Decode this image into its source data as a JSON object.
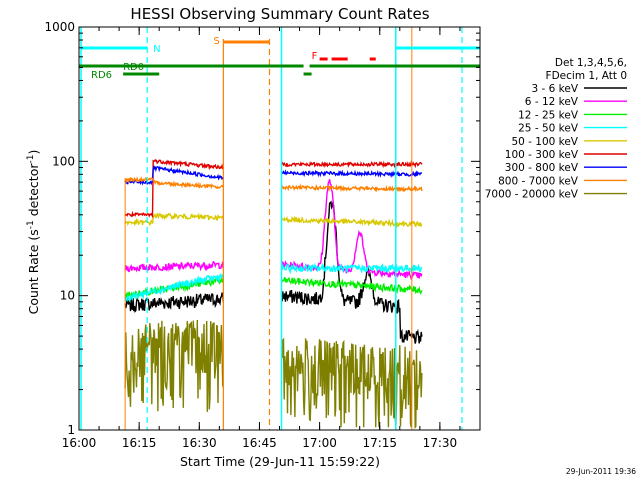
{
  "chart_data": {
    "type": "line",
    "title": "HESSI Observing Summary Count Rates",
    "xlabel": "Start Time (29-Jun-11 15:59:22)",
    "ylabel_main": "Count Rate (s",
    "ylabel_sup": "-1",
    "ylabel_mid": " detector",
    "ylabel_sup2": "-1",
    "ylabel_end": ")",
    "yscale": "log",
    "xlim_min": [
      0,
      100
    ],
    "ylim": [
      1,
      1000
    ],
    "x_ticks": [
      {
        "min": 0,
        "label": "16:00"
      },
      {
        "min": 15,
        "label": "16:15"
      },
      {
        "min": 30,
        "label": "16:30"
      },
      {
        "min": 45,
        "label": "16:45"
      },
      {
        "min": 60,
        "label": "17:00"
      },
      {
        "min": 75,
        "label": "17:15"
      },
      {
        "min": 90,
        "label": "17:30"
      }
    ],
    "y_ticks": [
      {
        "v": 1,
        "label": "1"
      },
      {
        "v": 10,
        "label": "10"
      },
      {
        "v": 100,
        "label": "100"
      },
      {
        "v": 1000,
        "label": "1000"
      }
    ],
    "legend_header": [
      "Det 1,3,4,5,6,",
      "FDecim 1, Att 0"
    ],
    "series": [
      {
        "name": "3 - 6 keV",
        "color": "#000000"
      },
      {
        "name": "6 - 12 keV",
        "color": "#ff00ff"
      },
      {
        "name": "12 - 25 keV",
        "color": "#00ee00"
      },
      {
        "name": "25 - 50 keV",
        "color": "#00ffff"
      },
      {
        "name": "50 - 100 keV",
        "color": "#d8c800"
      },
      {
        "name": "100 - 300 keV",
        "color": "#e00000"
      },
      {
        "name": "300 - 800 keV",
        "color": "#0000ff"
      },
      {
        "name": "800 - 7000 keV",
        "color": "#ff8000"
      },
      {
        "name": "7000 - 20000 keV",
        "color": "#808000"
      }
    ],
    "flag_labels": {
      "N": "N",
      "RD0": "RD0",
      "RD6": "RD6",
      "S": "S",
      "F": "F"
    },
    "segments": [
      [
        11.5,
        36
      ],
      [
        50.5,
        85.5
      ]
    ],
    "timestamp": "29-Jun-2011 19:36"
  }
}
